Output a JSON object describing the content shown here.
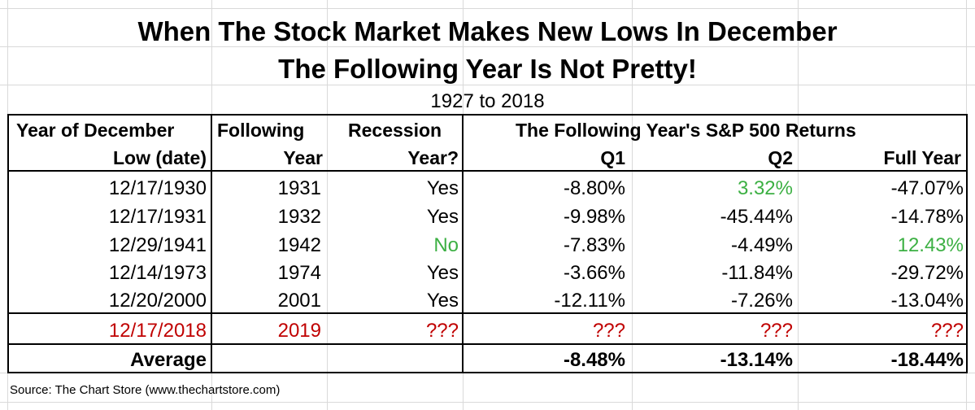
{
  "title_line1": "When The Stock Market Makes New Lows In December",
  "title_line2": "The Following Year Is Not Pretty!",
  "subtitle": "1927 to 2018",
  "headers": {
    "col1_line1": "Year of December",
    "col1_line2": "Low (date)",
    "col2_line1": "Following",
    "col2_line2": "Year",
    "col3_line1": "Recession",
    "col3_line2": "Year?",
    "returns_group": "The Following Year's S&P 500 Returns",
    "q1": "Q1",
    "q2": "Q2",
    "full_year": "Full Year"
  },
  "rows": [
    {
      "low_date": "12/17/1930",
      "following_year": "1931",
      "recession": "Yes",
      "q1": "-8.80%",
      "q2": "3.32%",
      "full_year": "-47.07%"
    },
    {
      "low_date": "12/17/1931",
      "following_year": "1932",
      "recession": "Yes",
      "q1": "-9.98%",
      "q2": "-45.44%",
      "full_year": "-14.78%"
    },
    {
      "low_date": "12/29/1941",
      "following_year": "1942",
      "recession": "No",
      "q1": "-7.83%",
      "q2": "-4.49%",
      "full_year": "12.43%"
    },
    {
      "low_date": "12/14/1973",
      "following_year": "1974",
      "recession": "Yes",
      "q1": "-3.66%",
      "q2": "-11.84%",
      "full_year": "-29.72%"
    },
    {
      "low_date": "12/20/2000",
      "following_year": "2001",
      "recession": "Yes",
      "q1": "-12.11%",
      "q2": "-7.26%",
      "full_year": "-13.04%"
    }
  ],
  "current_row": {
    "low_date": "12/17/2018",
    "following_year": "2019",
    "recession": "???",
    "q1": "???",
    "q2": "???",
    "full_year": "???"
  },
  "average_row": {
    "label": "Average",
    "q1": "-8.48%",
    "q2": "-13.14%",
    "full_year": "-18.44%"
  },
  "source": "Source: The Chart Store (www.thechartstore.com)",
  "colors": {
    "positive": "#3cb043",
    "current_row": "#c00000",
    "gridline": "#d9d9d9"
  }
}
